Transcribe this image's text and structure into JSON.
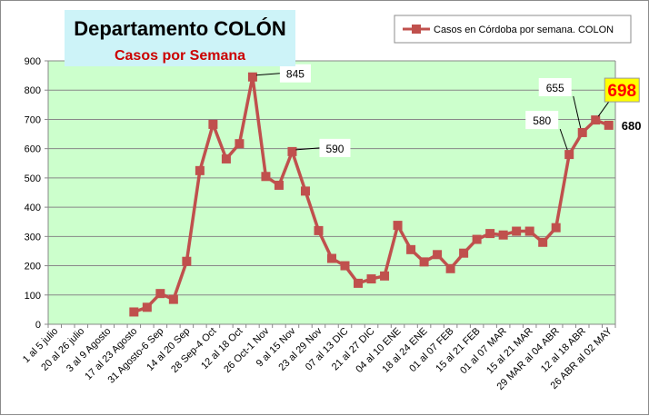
{
  "chart_data": {
    "type": "line",
    "title": "Departamento COLÓN",
    "subtitle": "Casos por Semana",
    "xlabel": "",
    "ylabel": "",
    "ylim": [
      0,
      900
    ],
    "ytick_step": 100,
    "grid": true,
    "legend_position": "top-right",
    "plot_background": "#ccffcc",
    "series_color": "#c0504d",
    "categories": [
      "1 al 5 julio",
      "",
      "20 al 26 julio",
      "",
      "3 al 9 Agosto",
      "",
      "17 al 23 Agosto",
      "",
      "31 Agosto-6 Sep",
      "",
      "14 al 20 Sep",
      "",
      "28 Sep-4 Oct",
      "",
      "12 al 18 Oct",
      "",
      "26 Oct-1 Nov",
      "",
      "9 al 15 Nov",
      "",
      "23 al 29 Nov",
      "",
      "07 al 13 DIC",
      "",
      "21 al 27 DIC",
      "",
      "04 al 10 ENE",
      "",
      "18 al 24 ENE",
      "",
      "01 al 07 FEB",
      "",
      "15 al 21 FEB",
      "",
      "01 al 07 MAR",
      "",
      "15 al 21 MAR",
      "",
      "29 MAR al 04 ABR",
      "",
      "12  al 18 ABR",
      "",
      "26 ABR al 02 MAY"
    ],
    "series": [
      {
        "name": "Casos en Córdoba por semana. COLON",
        "values": [
          null,
          null,
          null,
          null,
          null,
          null,
          42,
          58,
          105,
          85,
          215,
          525,
          683,
          565,
          617,
          845,
          505,
          475,
          590,
          455,
          320,
          225,
          200,
          140,
          155,
          165,
          338,
          255,
          213,
          238,
          190,
          243,
          290,
          310,
          305,
          318,
          318,
          280,
          330,
          580,
          655,
          698,
          680
        ]
      }
    ],
    "annotations": [
      {
        "index": 15,
        "label": "845",
        "highlight": false
      },
      {
        "index": 18,
        "label": "590",
        "highlight": false
      },
      {
        "index": 39,
        "label": "580",
        "highlight": false
      },
      {
        "index": 40,
        "label": "655",
        "highlight": false
      },
      {
        "index": 41,
        "label": "698",
        "highlight": true
      },
      {
        "index": 42,
        "label": "680",
        "highlight": false,
        "bold": true
      }
    ]
  }
}
